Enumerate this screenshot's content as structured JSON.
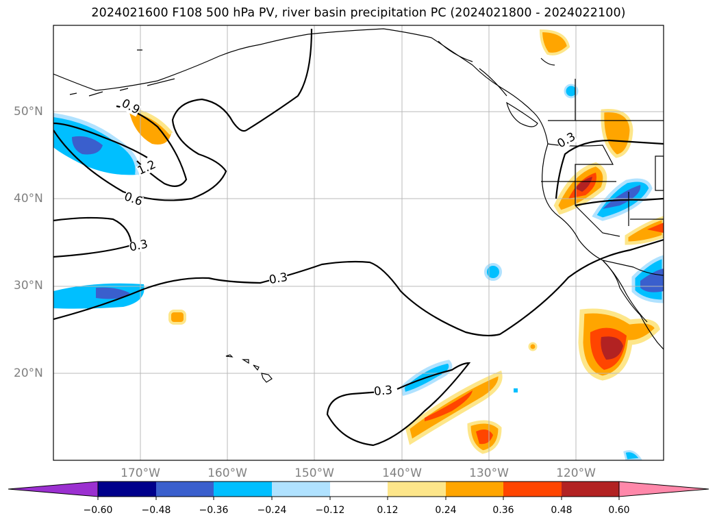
{
  "title": "2024021600 F108 500 hPa PV, river basin precipitation PC (2024021800 - 2024022100)",
  "latitude_labels": [
    "50°N",
    "40°N",
    "30°N",
    "20°N"
  ],
  "longitude_labels": [
    "170°W",
    "160°W",
    "150°W",
    "140°W",
    "130°W",
    "120°W"
  ],
  "contour_labels": [
    "0.9",
    "1.2",
    "0.6",
    "0.3",
    "0.3",
    "0.3",
    "0.3"
  ],
  "colorbar": {
    "ticks": [
      "−0.60",
      "−0.48",
      "−0.36",
      "−0.24",
      "−0.12",
      "0.12",
      "0.24",
      "0.36",
      "0.48",
      "0.60"
    ],
    "colors": [
      "#9b30d0",
      "#00008b",
      "#3a5fcd",
      "#00bfff",
      "#b0e2ff",
      "#ffffff",
      "#fde68a",
      "#ffa500",
      "#ff4500",
      "#b22222",
      "#ff88aa"
    ]
  }
}
